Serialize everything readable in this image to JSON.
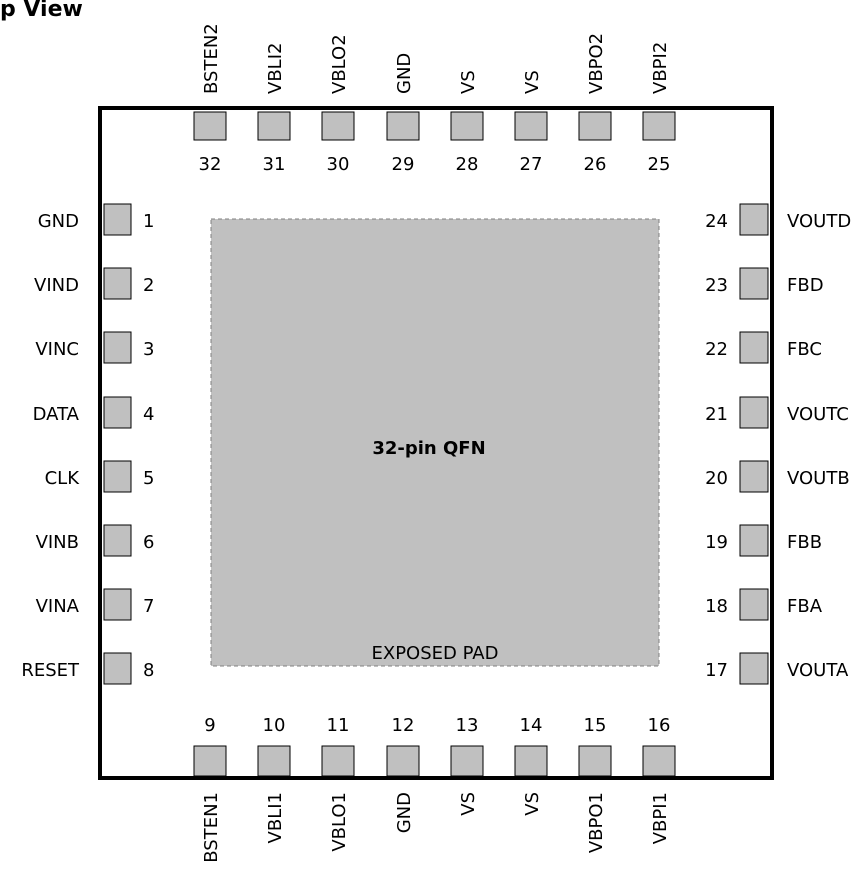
{
  "title": "p View",
  "package_label": "32-pin QFN",
  "exposed_pad_label": "EXPOSED PAD",
  "colors": {
    "pin_fill": "#c0c0c0",
    "pad_fill": "#c0c0c0",
    "pad_border": "#808080",
    "outline": "#000000"
  },
  "pins_left": [
    {
      "number": "1",
      "label": "GND"
    },
    {
      "number": "2",
      "label": "VIND"
    },
    {
      "number": "3",
      "label": "VINC"
    },
    {
      "number": "4",
      "label": "DATA"
    },
    {
      "number": "5",
      "label": "CLK"
    },
    {
      "number": "6",
      "label": "VINB"
    },
    {
      "number": "7",
      "label": "VINA"
    },
    {
      "number": "8",
      "label": "RESET"
    }
  ],
  "pins_bottom": [
    {
      "number": "9",
      "label": "BSTEN1"
    },
    {
      "number": "10",
      "label": "VBLI1"
    },
    {
      "number": "11",
      "label": "VBLO1"
    },
    {
      "number": "12",
      "label": "GND"
    },
    {
      "number": "13",
      "label": "VS"
    },
    {
      "number": "14",
      "label": "VS"
    },
    {
      "number": "15",
      "label": "VBPO1"
    },
    {
      "number": "16",
      "label": "VBPI1"
    }
  ],
  "pins_right": [
    {
      "number": "24",
      "label": "VOUTD"
    },
    {
      "number": "23",
      "label": "FBD"
    },
    {
      "number": "22",
      "label": "FBC"
    },
    {
      "number": "21",
      "label": "VOUTC"
    },
    {
      "number": "20",
      "label": "VOUTB"
    },
    {
      "number": "19",
      "label": "FBB"
    },
    {
      "number": "18",
      "label": "FBA"
    },
    {
      "number": "17",
      "label": "VOUTA"
    }
  ],
  "pins_top": [
    {
      "number": "32",
      "label": "BSTEN2"
    },
    {
      "number": "31",
      "label": "VBLI2"
    },
    {
      "number": "30",
      "label": "VBLO2"
    },
    {
      "number": "29",
      "label": "GND"
    },
    {
      "number": "28",
      "label": "VS"
    },
    {
      "number": "27",
      "label": "VS"
    },
    {
      "number": "26",
      "label": "VBPO2"
    },
    {
      "number": "25",
      "label": "VBPI2"
    }
  ]
}
